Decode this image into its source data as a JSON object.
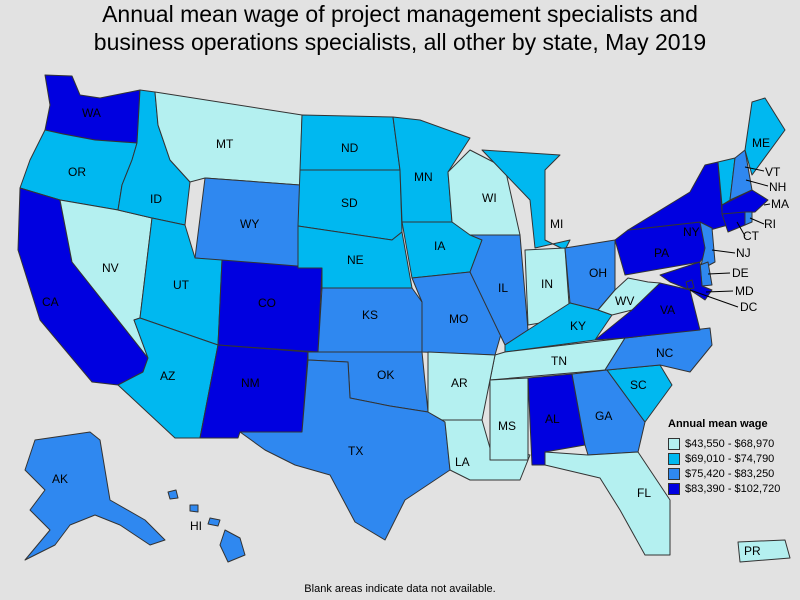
{
  "title_line1": "Annual mean wage of project management specialists and",
  "title_line2": "business operations specialists, all other by state, May 2019",
  "legend": {
    "title": "Annual mean wage",
    "bins": [
      {
        "label": "$43,550 - $68,970",
        "color": "#b4f0f0"
      },
      {
        "label": "$69,010 - $74,790",
        "color": "#00b8f0"
      },
      {
        "label": "$75,420 - $83,250",
        "color": "#2f88f0"
      },
      {
        "label": "$83,390 - $102,720",
        "color": "#0000e0"
      }
    ]
  },
  "footnote": "Blank areas indicate data not available.",
  "states": {
    "WA": {
      "label": "WA",
      "bin": 3
    },
    "OR": {
      "label": "OR",
      "bin": 1
    },
    "CA": {
      "label": "CA",
      "bin": 3
    },
    "NV": {
      "label": "NV",
      "bin": 0
    },
    "ID": {
      "label": "ID",
      "bin": 1
    },
    "MT": {
      "label": "MT",
      "bin": 0
    },
    "WY": {
      "label": "WY",
      "bin": 2
    },
    "UT": {
      "label": "UT",
      "bin": 1
    },
    "AZ": {
      "label": "AZ",
      "bin": 1
    },
    "CO": {
      "label": "CO",
      "bin": 3
    },
    "NM": {
      "label": "NM",
      "bin": 3
    },
    "ND": {
      "label": "ND",
      "bin": 1
    },
    "SD": {
      "label": "SD",
      "bin": 1
    },
    "NE": {
      "label": "NE",
      "bin": 1
    },
    "KS": {
      "label": "KS",
      "bin": 2
    },
    "OK": {
      "label": "OK",
      "bin": 2
    },
    "TX": {
      "label": "TX",
      "bin": 2
    },
    "MN": {
      "label": "MN",
      "bin": 1
    },
    "IA": {
      "label": "IA",
      "bin": 1
    },
    "MO": {
      "label": "MO",
      "bin": 2
    },
    "AR": {
      "label": "AR",
      "bin": 0
    },
    "LA": {
      "label": "LA",
      "bin": 0
    },
    "WI": {
      "label": "WI",
      "bin": 0
    },
    "IL": {
      "label": "IL",
      "bin": 2
    },
    "MI": {
      "label": "MI",
      "bin": 1
    },
    "IN": {
      "label": "IN",
      "bin": 0
    },
    "OH": {
      "label": "OH",
      "bin": 2
    },
    "KY": {
      "label": "KY",
      "bin": 1
    },
    "TN": {
      "label": "TN",
      "bin": 0
    },
    "MS": {
      "label": "MS",
      "bin": 0
    },
    "AL": {
      "label": "AL",
      "bin": 3
    },
    "GA": {
      "label": "GA",
      "bin": 2
    },
    "FL": {
      "label": "FL",
      "bin": 0
    },
    "SC": {
      "label": "SC",
      "bin": 1
    },
    "NC": {
      "label": "NC",
      "bin": 2
    },
    "VA": {
      "label": "VA",
      "bin": 3
    },
    "WV": {
      "label": "WV",
      "bin": 0
    },
    "PA": {
      "label": "PA",
      "bin": 3
    },
    "NY": {
      "label": "NY",
      "bin": 3
    },
    "ME": {
      "label": "ME",
      "bin": 1
    },
    "VT": {
      "label": "VT",
      "bin": 1
    },
    "NH": {
      "label": "NH",
      "bin": 2
    },
    "MA": {
      "label": "MA",
      "bin": 3
    },
    "RI": {
      "label": "RI",
      "bin": 2
    },
    "CT": {
      "label": "CT",
      "bin": 3
    },
    "NJ": {
      "label": "NJ",
      "bin": 2
    },
    "DE": {
      "label": "DE",
      "bin": 2
    },
    "MD": {
      "label": "MD",
      "bin": 3
    },
    "DC": {
      "label": "DC",
      "bin": 3
    },
    "AK": {
      "label": "AK",
      "bin": 2
    },
    "HI": {
      "label": "HI",
      "bin": 2
    },
    "PR": {
      "label": "PR",
      "bin": 0
    }
  }
}
